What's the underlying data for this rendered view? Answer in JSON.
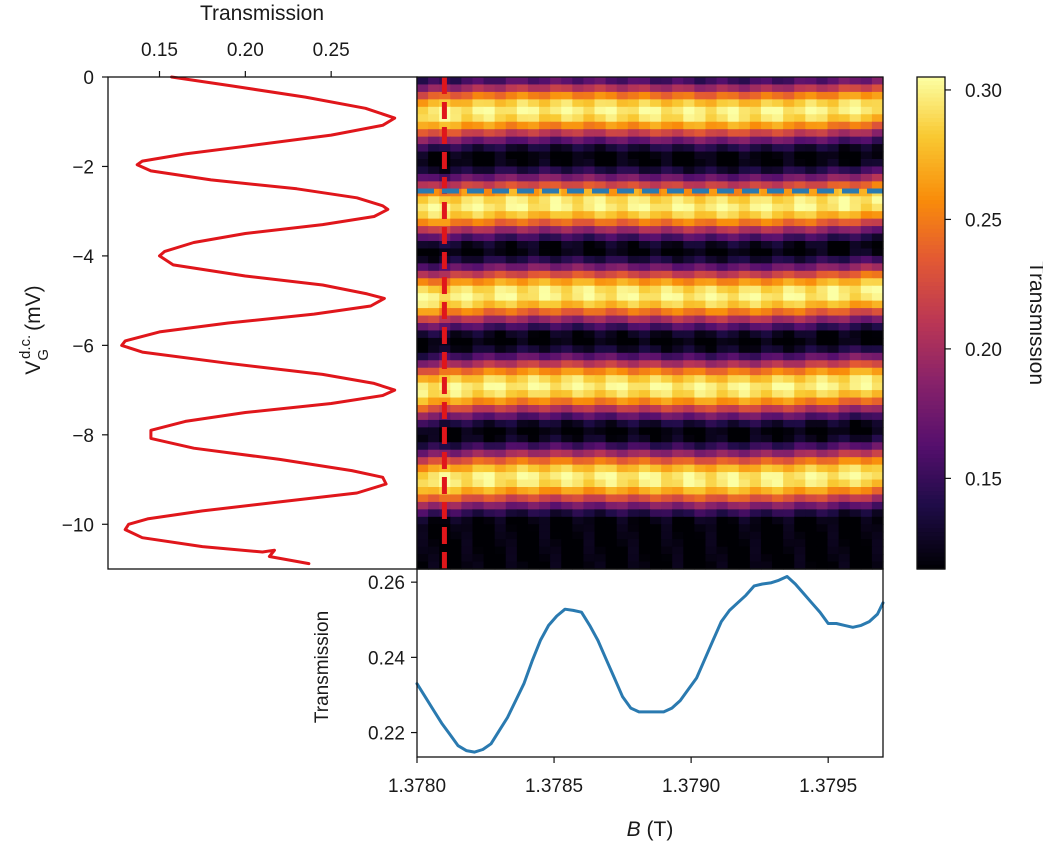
{
  "chart_data": [
    {
      "type": "line",
      "panel": "left",
      "xlabel": "Transmission",
      "ylabel": "V_G^{d.c.} (mV)",
      "ylabel_main": "V",
      "ylabel_sub": "G",
      "ylabel_sup": "d.c.",
      "ylabel_unit": "(mV)",
      "xlim": [
        0.12,
        0.3
      ],
      "ylim": [
        -11,
        0
      ],
      "xticks": [
        0.15,
        0.2,
        0.25
      ],
      "xtick_labels": [
        "0.15",
        "0.20",
        "0.25"
      ],
      "yticks": [
        0,
        -2,
        -4,
        -6,
        -8,
        -10
      ],
      "ytick_labels": [
        "0",
        "−2",
        "−4",
        "−6",
        "−8",
        "−10"
      ],
      "series": [
        {
          "color": "#e0161b",
          "points": [
            [
              0.157,
              0.0
            ],
            [
              0.192,
              -0.2
            ],
            [
              0.235,
              -0.45
            ],
            [
              0.27,
              -0.7
            ],
            [
              0.287,
              -0.92
            ],
            [
              0.28,
              -1.08
            ],
            [
              0.25,
              -1.3
            ],
            [
              0.2,
              -1.55
            ],
            [
              0.165,
              -1.72
            ],
            [
              0.14,
              -1.88
            ],
            [
              0.137,
              -1.96
            ],
            [
              0.145,
              -2.1
            ],
            [
              0.18,
              -2.3
            ],
            [
              0.23,
              -2.5
            ],
            [
              0.265,
              -2.7
            ],
            [
              0.28,
              -2.88
            ],
            [
              0.283,
              -2.96
            ],
            [
              0.275,
              -3.12
            ],
            [
              0.245,
              -3.3
            ],
            [
              0.2,
              -3.5
            ],
            [
              0.17,
              -3.7
            ],
            [
              0.153,
              -3.9
            ],
            [
              0.15,
              -4.0
            ],
            [
              0.158,
              -4.2
            ],
            [
              0.2,
              -4.45
            ],
            [
              0.245,
              -4.65
            ],
            [
              0.271,
              -4.85
            ],
            [
              0.281,
              -4.95
            ],
            [
              0.273,
              -5.12
            ],
            [
              0.24,
              -5.3
            ],
            [
              0.19,
              -5.5
            ],
            [
              0.15,
              -5.7
            ],
            [
              0.13,
              -5.9
            ],
            [
              0.128,
              -6.0
            ],
            [
              0.14,
              -6.15
            ],
            [
              0.19,
              -6.4
            ],
            [
              0.245,
              -6.65
            ],
            [
              0.275,
              -6.85
            ],
            [
              0.287,
              -7.0
            ],
            [
              0.28,
              -7.12
            ],
            [
              0.25,
              -7.3
            ],
            [
              0.2,
              -7.5
            ],
            [
              0.165,
              -7.7
            ],
            [
              0.145,
              -7.9
            ],
            [
              0.145,
              -8.08
            ],
            [
              0.17,
              -8.3
            ],
            [
              0.22,
              -8.55
            ],
            [
              0.262,
              -8.8
            ],
            [
              0.28,
              -8.95
            ],
            [
              0.282,
              -9.1
            ],
            [
              0.265,
              -9.3
            ],
            [
              0.22,
              -9.5
            ],
            [
              0.175,
              -9.7
            ],
            [
              0.143,
              -9.88
            ],
            [
              0.132,
              -10.0
            ],
            [
              0.13,
              -10.12
            ],
            [
              0.14,
              -10.3
            ],
            [
              0.175,
              -10.5
            ],
            [
              0.21,
              -10.62
            ],
            [
              0.217,
              -10.58
            ],
            [
              0.214,
              -10.72
            ],
            [
              0.237,
              -10.88
            ]
          ]
        }
      ]
    },
    {
      "type": "heatmap",
      "panel": "main",
      "xlim": [
        1.378,
        1.3797
      ],
      "ylim": [
        -11,
        0
      ],
      "colormap": "inferno",
      "vmin": 0.115,
      "vmax": 0.305,
      "fringe_peaks_mV": [
        -0.85,
        -2.95,
        -4.95,
        -7.0,
        -9.05
      ],
      "fringe_minima_mV": [
        -1.9,
        -3.95,
        -6.0,
        -8.05,
        -10.1
      ],
      "fringe_shift_mV_at_end": 0.15,
      "vertical_cut_B": 1.3781,
      "vertical_cut_color": "#e0161b",
      "horizontal_cut_V": -2.55,
      "horizontal_cut_color": "#2a7ab0"
    },
    {
      "type": "colorbar",
      "panel": "colorbar",
      "label": "Transmission",
      "ticks": [
        0.3,
        0.25,
        0.2,
        0.15
      ],
      "tick_labels": [
        "0.30",
        "0.25",
        "0.20",
        "0.15"
      ],
      "range": [
        0.115,
        0.305
      ]
    },
    {
      "type": "line",
      "panel": "bottom",
      "xlabel": "B (T)",
      "xlabel_main": "B",
      "xlabel_unit": "(T)",
      "ylabel": "Transmission",
      "xlim": [
        1.378,
        1.3797
      ],
      "ylim": [
        0.2135,
        0.2635
      ],
      "xticks": [
        1.378,
        1.3785,
        1.379,
        1.3795
      ],
      "xtick_labels": [
        "1.3780",
        "1.3785",
        "1.3790",
        "1.3795"
      ],
      "yticks": [
        0.26,
        0.24,
        0.22
      ],
      "ytick_labels": [
        "0.26",
        "0.24",
        "0.22"
      ],
      "series": [
        {
          "color": "#2a7ab0",
          "x": [
            1.378,
            1.37803,
            1.37806,
            1.37809,
            1.37812,
            1.37815,
            1.37818,
            1.37821,
            1.37824,
            1.37827,
            1.3783,
            1.37833,
            1.37836,
            1.37839,
            1.37842,
            1.37845,
            1.37848,
            1.37851,
            1.37854,
            1.37857,
            1.3786,
            1.37863,
            1.37866,
            1.37869,
            1.37872,
            1.37875,
            1.37878,
            1.37881,
            1.37884,
            1.37887,
            1.3789,
            1.37893,
            1.37896,
            1.37899,
            1.37902,
            1.37905,
            1.37908,
            1.37911,
            1.37914,
            1.37917,
            1.3792,
            1.37923,
            1.37926,
            1.37929,
            1.37932,
            1.37935,
            1.37938,
            1.37941,
            1.37944,
            1.37947,
            1.3795,
            1.37953,
            1.37956,
            1.37959,
            1.37962,
            1.37965,
            1.37968,
            1.3797
          ],
          "values": [
            0.233,
            0.2295,
            0.226,
            0.2225,
            0.2195,
            0.2165,
            0.2152,
            0.2148,
            0.2155,
            0.217,
            0.2205,
            0.224,
            0.2285,
            0.233,
            0.239,
            0.2445,
            0.2485,
            0.251,
            0.2528,
            0.2525,
            0.252,
            0.2485,
            0.2445,
            0.2395,
            0.2345,
            0.2295,
            0.2265,
            0.2255,
            0.2255,
            0.2255,
            0.2255,
            0.2265,
            0.2285,
            0.2315,
            0.2345,
            0.2395,
            0.2445,
            0.2495,
            0.2525,
            0.2545,
            0.2565,
            0.259,
            0.2595,
            0.2598,
            0.2605,
            0.2615,
            0.2595,
            0.257,
            0.2545,
            0.252,
            0.249,
            0.249,
            0.2485,
            0.248,
            0.2485,
            0.2495,
            0.2515,
            0.2545
          ]
        }
      ]
    }
  ]
}
